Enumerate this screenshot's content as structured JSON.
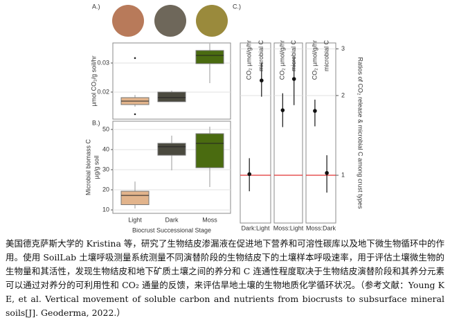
{
  "chart_data": [
    {
      "type": "box",
      "label": "A.)",
      "ylabel": "µmol CO₂/g soil/hr",
      "colors": [
        "#e2b48c",
        "#4b4a3f",
        "#4a6b10"
      ],
      "boxes": [
        {
          "low": 0.015,
          "q1": 0.0157,
          "median": 0.0169,
          "q3": 0.0181,
          "high": 0.019,
          "outliers": [
            0.0317,
            0.0124
          ]
        },
        {
          "low": 0.0167,
          "q1": 0.0167,
          "median": 0.0181,
          "q3": 0.02,
          "high": 0.0205,
          "outliers": []
        },
        {
          "low": 0.0231,
          "q1": 0.0298,
          "median": 0.0326,
          "q3": 0.0343,
          "high": 0.0367,
          "outliers": []
        }
      ],
      "ylim": [
        0.0107,
        0.0369
      ],
      "yticks": [
        0.02,
        0.03
      ],
      "grid": true
    },
    {
      "type": "box",
      "label": "B.)",
      "ylabel": [
        "Microbial biomass C",
        "µg/g soil"
      ],
      "xlabel": "Biocrust Successional Stage",
      "categories": [
        "Light",
        "Dark",
        "Moss"
      ],
      "colors": [
        "#e2b48c",
        "#4b4a3f",
        "#4a6b10"
      ],
      "boxes": [
        {
          "low": 10.7,
          "q1": 12.6,
          "median": 17.2,
          "q3": 19.3,
          "high": 24.1,
          "outliers": []
        },
        {
          "low": 29.7,
          "q1": 37.2,
          "median": 41.4,
          "q3": 43.1,
          "high": 46.9,
          "outliers": []
        },
        {
          "low": 21.4,
          "q1": 31.0,
          "median": 43.1,
          "q3": 47.9,
          "high": 51.4,
          "outliers": []
        }
      ],
      "ylim": [
        8.3,
        54.1
      ],
      "yticks": [
        10,
        20,
        30,
        40,
        50
      ],
      "grid": true
    },
    {
      "type": "pointrange",
      "label": "C.)",
      "ylabel": "Ratios of CO₂ release & microbial C among crust types",
      "categories": [
        "CO₂ µmol/g/hr",
        "microbial C"
      ],
      "facets": [
        {
          "name": "Dark:Light",
          "values": [
            1.01,
            2.28
          ],
          "lower": [
            0.87,
            1.98
          ],
          "upper": [
            1.16,
            2.67
          ]
        },
        {
          "name": "Moss:Light",
          "values": [
            1.76,
            2.31
          ],
          "lower": [
            1.52,
            1.84
          ],
          "upper": [
            2.04,
            2.8
          ]
        },
        {
          "name": "Moss:Dark",
          "values": [
            1.75,
            1.02
          ],
          "lower": [
            1.53,
            0.86
          ],
          "upper": [
            1.93,
            1.19
          ]
        }
      ],
      "log_scale": true,
      "ylim": [
        0.66,
        3.16
      ],
      "yticks": [
        1,
        2,
        3
      ],
      "reference_line": 1,
      "reference_color": "#e03030",
      "grid": true
    }
  ],
  "caption": "美国德克萨斯大学的 Kristina 等，研究了生物结皮渗漏液在促进地下营养和可溶性碳库以及地下微生物循环中的作用。使用 SoilLab 土壤呼吸测量系统测量不同演替阶段的生物结皮下的土壤样本呼吸速率，用于评估土壤微生物的生物量和其活性，发现生物结皮和地下矿质土壤之间的养分和 C 连通性程度取决于生物结皮演替阶段和其养分元素可以通过对养分的可利用性和 CO₂ 通量的反馈，来评估旱地土壤的生物地质化学循环状况。（参考文献：Young K E, et al. Vertical movement of soluble carbon and nutrients from biocrusts to subsurface mineral soils[J]. Geoderma, 2022.）"
}
